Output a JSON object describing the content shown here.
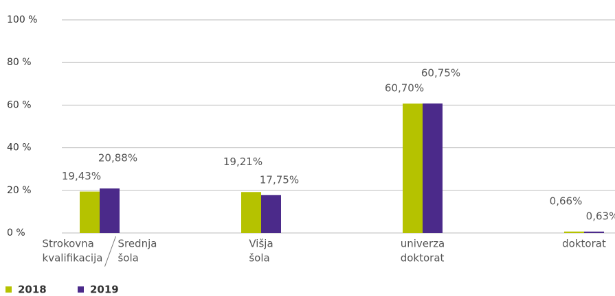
{
  "chart_data": {
    "type": "bar",
    "categories": [
      [
        [
          "Strokovna",
          "kvalifikacija"
        ],
        [
          "Srednja",
          "šola"
        ]
      ],
      [
        [
          "Višja",
          "šola"
        ]
      ],
      [
        [
          "univerza",
          "doktorat"
        ]
      ],
      [
        [
          "doktorat"
        ]
      ]
    ],
    "series": [
      {
        "name": "2018",
        "color": "#b5c200",
        "values": [
          19.43,
          19.21,
          60.7,
          0.66
        ],
        "value_labels": [
          "19,43%",
          "19,21%",
          "60,70%",
          "0,66%"
        ]
      },
      {
        "name": "2019",
        "color": "#4b2a8a",
        "values": [
          20.88,
          17.75,
          60.75,
          0.63
        ],
        "value_labels": [
          "20,88%",
          "17,75%",
          "60,75%",
          "0,63%"
        ]
      }
    ],
    "ylim": [
      0,
      100
    ],
    "yticks": [
      {
        "value": 0,
        "label": "0 %"
      },
      {
        "value": 20,
        "label": "20 %"
      },
      {
        "value": 40,
        "label": "40 %"
      },
      {
        "value": 60,
        "label": "60 %"
      },
      {
        "value": 80,
        "label": "80 %"
      },
      {
        "value": 100,
        "label": "100 %"
      }
    ],
    "grid": true,
    "legend": "bottom-left"
  }
}
